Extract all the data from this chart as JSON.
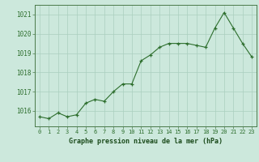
{
  "x": [
    0,
    1,
    2,
    3,
    4,
    5,
    6,
    7,
    8,
    9,
    10,
    11,
    12,
    13,
    14,
    15,
    16,
    17,
    18,
    19,
    20,
    21,
    22,
    23
  ],
  "y": [
    1015.7,
    1015.6,
    1015.9,
    1015.7,
    1015.8,
    1016.4,
    1016.6,
    1016.5,
    1017.0,
    1017.4,
    1017.4,
    1018.6,
    1018.9,
    1019.3,
    1019.5,
    1019.5,
    1019.5,
    1019.4,
    1019.3,
    1020.3,
    1021.1,
    1020.3,
    1019.5,
    1018.8
  ],
  "line_color": "#2d6e2d",
  "marker_color": "#2d6e2d",
  "bg_color": "#cce8dc",
  "grid_color": "#aacfbf",
  "border_color": "#4a7a4a",
  "xlabel": "Graphe pression niveau de la mer (hPa)",
  "xlabel_color": "#1a4a1a",
  "ylabel_ticks": [
    1016,
    1017,
    1018,
    1019,
    1020,
    1021
  ],
  "xlim": [
    -0.5,
    23.5
  ],
  "ylim": [
    1015.2,
    1021.5
  ],
  "xtick_labels": [
    "0",
    "1",
    "2",
    "3",
    "4",
    "5",
    "6",
    "7",
    "8",
    "9",
    "10",
    "11",
    "12",
    "13",
    "14",
    "15",
    "16",
    "17",
    "18",
    "19",
    "20",
    "21",
    "22",
    "23"
  ]
}
